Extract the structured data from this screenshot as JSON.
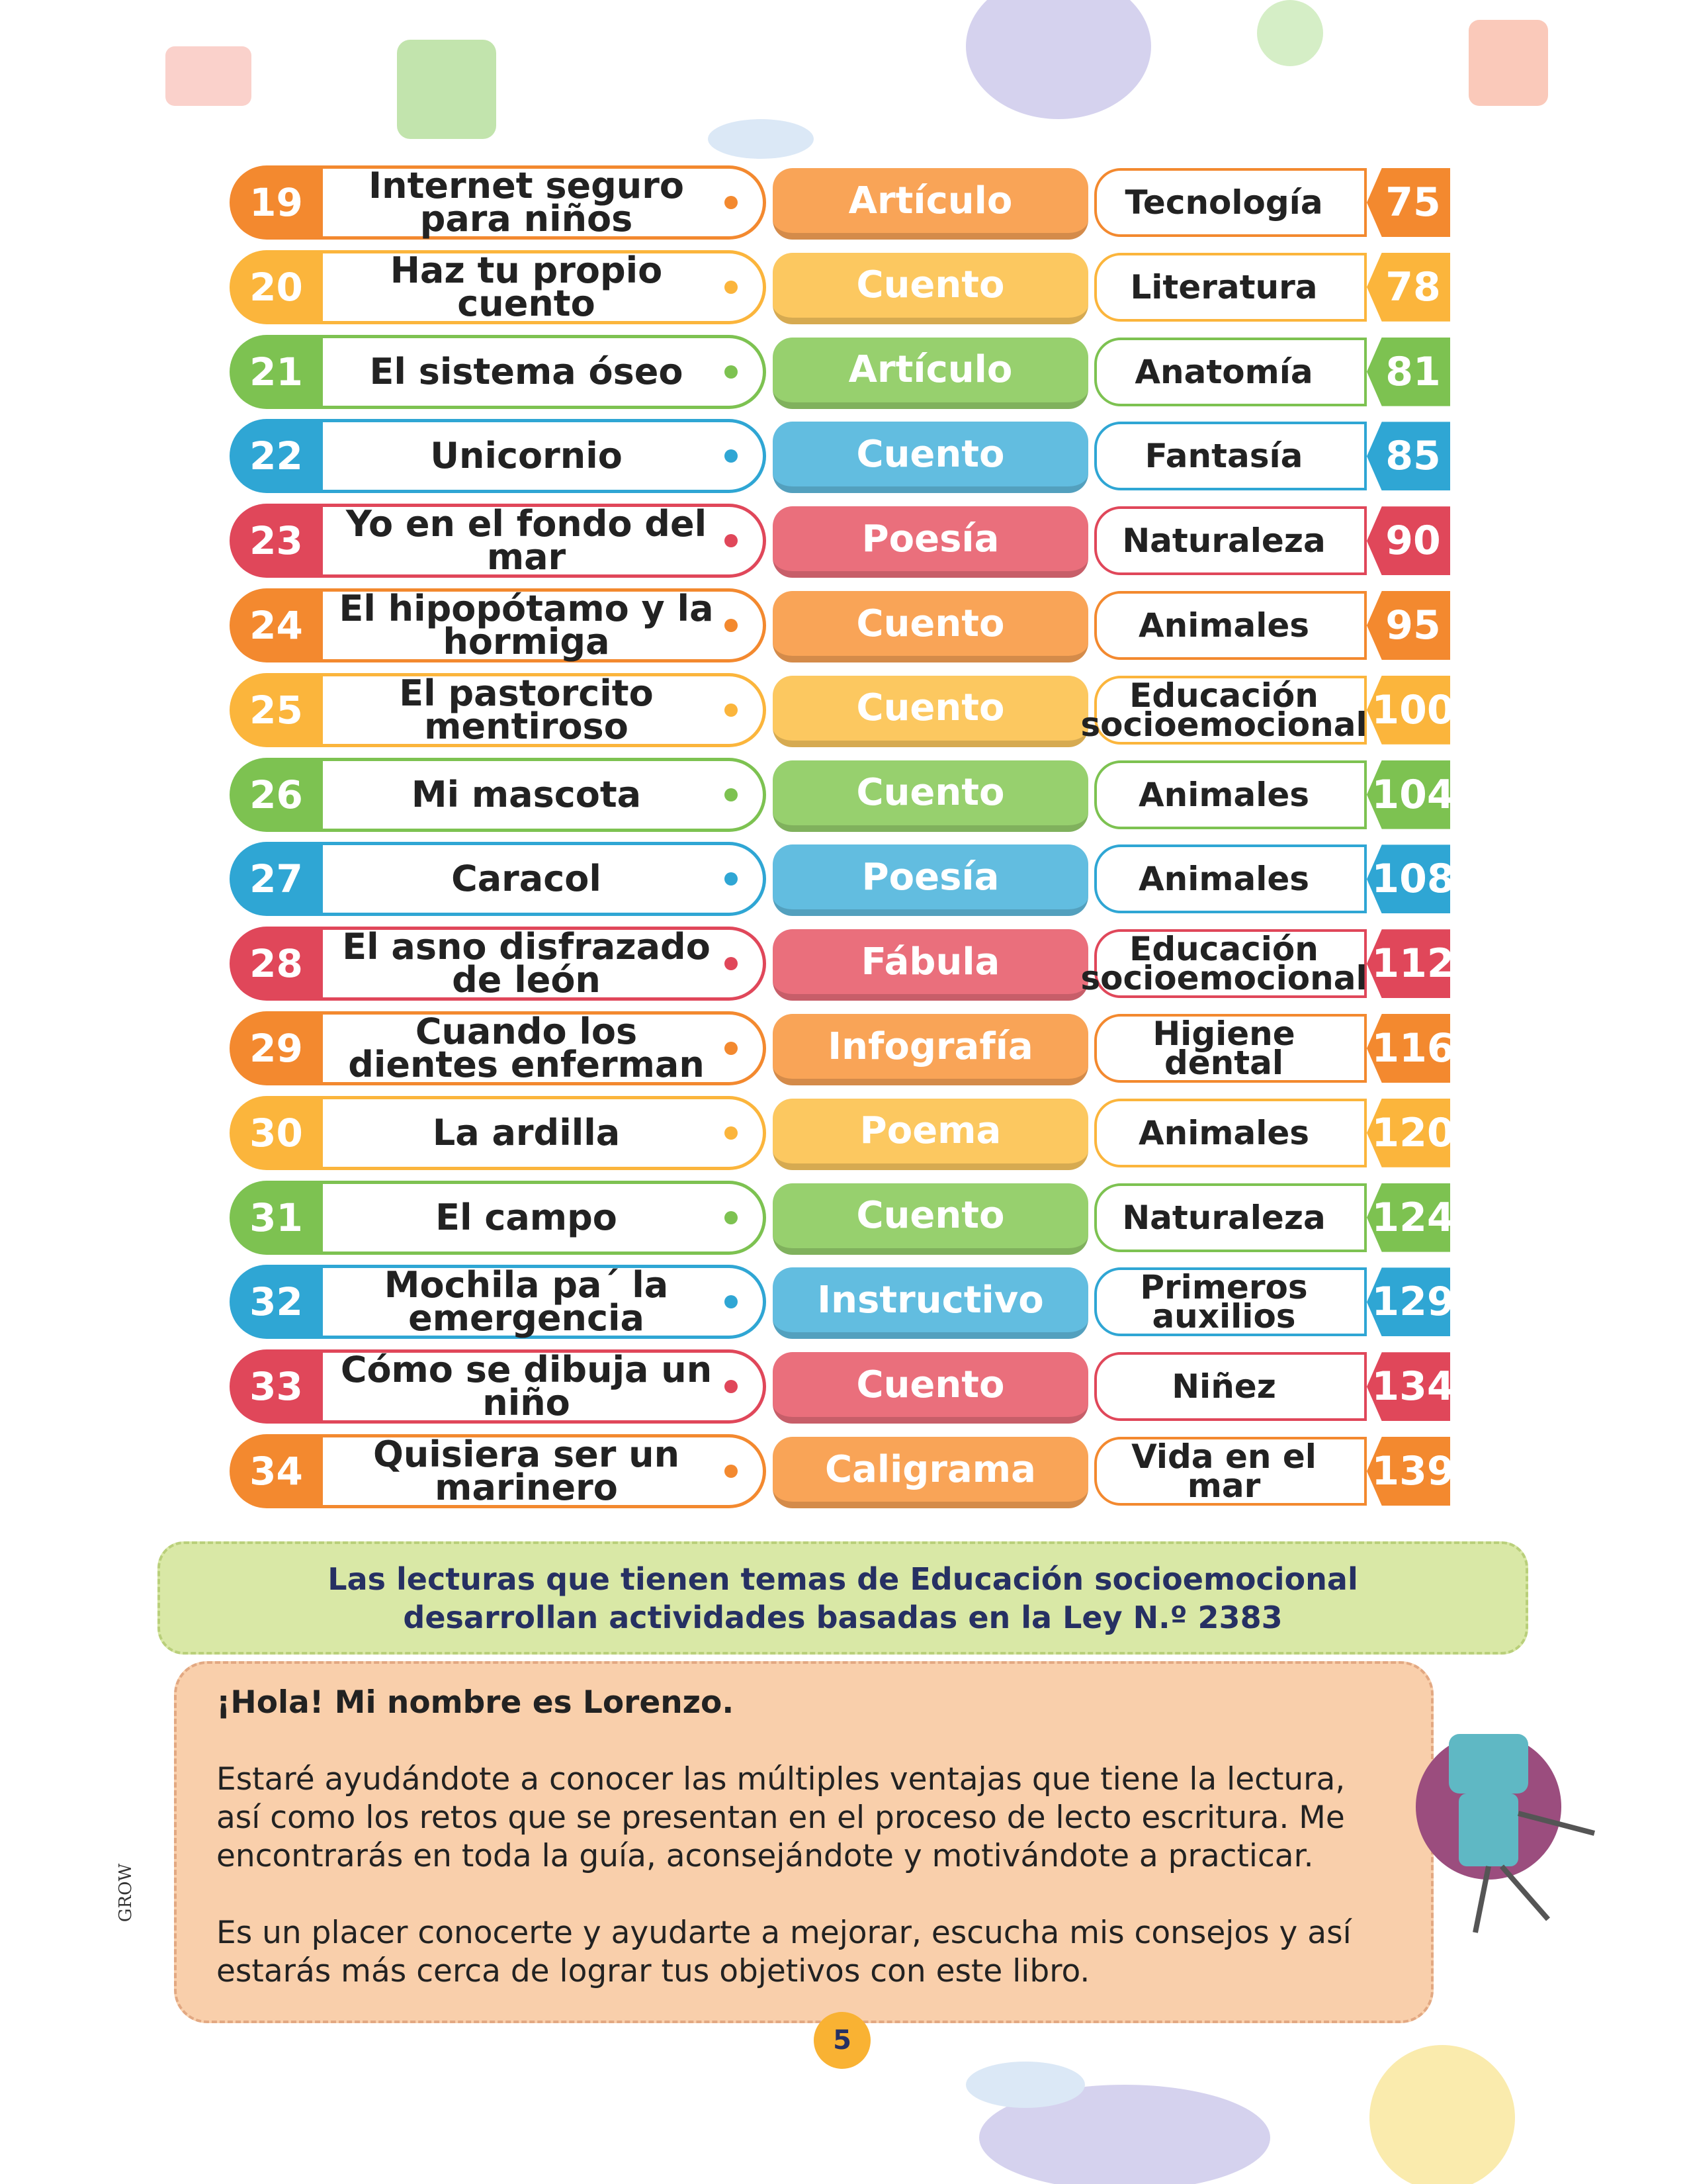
{
  "rows": [
    {
      "num": 19,
      "title": "Internet seguro para niños",
      "type": "Artículo",
      "topic": "Tecnología",
      "page": 75
    },
    {
      "num": 20,
      "title": "Haz tu propio cuento",
      "type": "Cuento",
      "topic": "Literatura",
      "page": 78
    },
    {
      "num": 21,
      "title": "El sistema óseo",
      "type": "Artículo",
      "topic": "Anatomía",
      "page": 81
    },
    {
      "num": 22,
      "title": "Unicornio",
      "type": "Cuento",
      "topic": "Fantasía",
      "page": 85
    },
    {
      "num": 23,
      "title": "Yo en el fondo del mar",
      "type": "Poesía",
      "topic": "Naturaleza",
      "page": 90
    },
    {
      "num": 24,
      "title": "El hipopótamo y la hormiga",
      "type": "Cuento",
      "topic": "Animales",
      "page": 95
    },
    {
      "num": 25,
      "title": "El pastorcito mentiroso",
      "type": "Cuento",
      "topic": "Educación socioemocional",
      "page": 100
    },
    {
      "num": 26,
      "title": "Mi mascota",
      "type": "Cuento",
      "topic": "Animales",
      "page": 104
    },
    {
      "num": 27,
      "title": "Caracol",
      "type": "Poesía",
      "topic": "Animales",
      "page": 108
    },
    {
      "num": 28,
      "title": "El asno disfrazado de león",
      "type": "Fábula",
      "topic": "Educación socioemocional",
      "page": 112
    },
    {
      "num": 29,
      "title": "Cuando los dientes enferman",
      "type": "Infografía",
      "topic": "Higiene dental",
      "page": 116
    },
    {
      "num": 30,
      "title": "La ardilla",
      "type": "Poema",
      "topic": "Animales",
      "page": 120
    },
    {
      "num": 31,
      "title": "El campo",
      "type": "Cuento",
      "topic": "Naturaleza",
      "page": 124
    },
    {
      "num": 32,
      "title": "Mochila pa´ la emergencia",
      "type": "Instructivo",
      "topic": "Primeros auxilios",
      "page": 129
    },
    {
      "num": 33,
      "title": "Cómo se dibuja un niño",
      "type": "Cuento",
      "topic": "Niñez",
      "page": 134
    },
    {
      "num": 34,
      "title": "Quisiera ser un marinero",
      "type": "Caligrama",
      "topic": "Vida en el mar",
      "page": 139
    }
  ],
  "note": "Las lecturas que tienen temas de Educación socioemocional desarrollan actividades basadas en la Ley N.º 2383",
  "greeting": {
    "heading": "¡Hola! Mi nombre es Lorenzo.",
    "paragraphs": [
      "Estaré ayudándote a conocer las múltiples ventajas que tiene la lectura, así como los retos que se presentan en el proceso de lecto escritura. Me encontrarás en toda la guía, aconsejándote y motivándote a practicar.",
      "Es un placer conocerte y ayudarte a mejorar, escucha mis consejos y así estarás más cerca de lograr tus objetivos con este libro."
    ]
  },
  "brand": "GROW",
  "page_number": "5"
}
